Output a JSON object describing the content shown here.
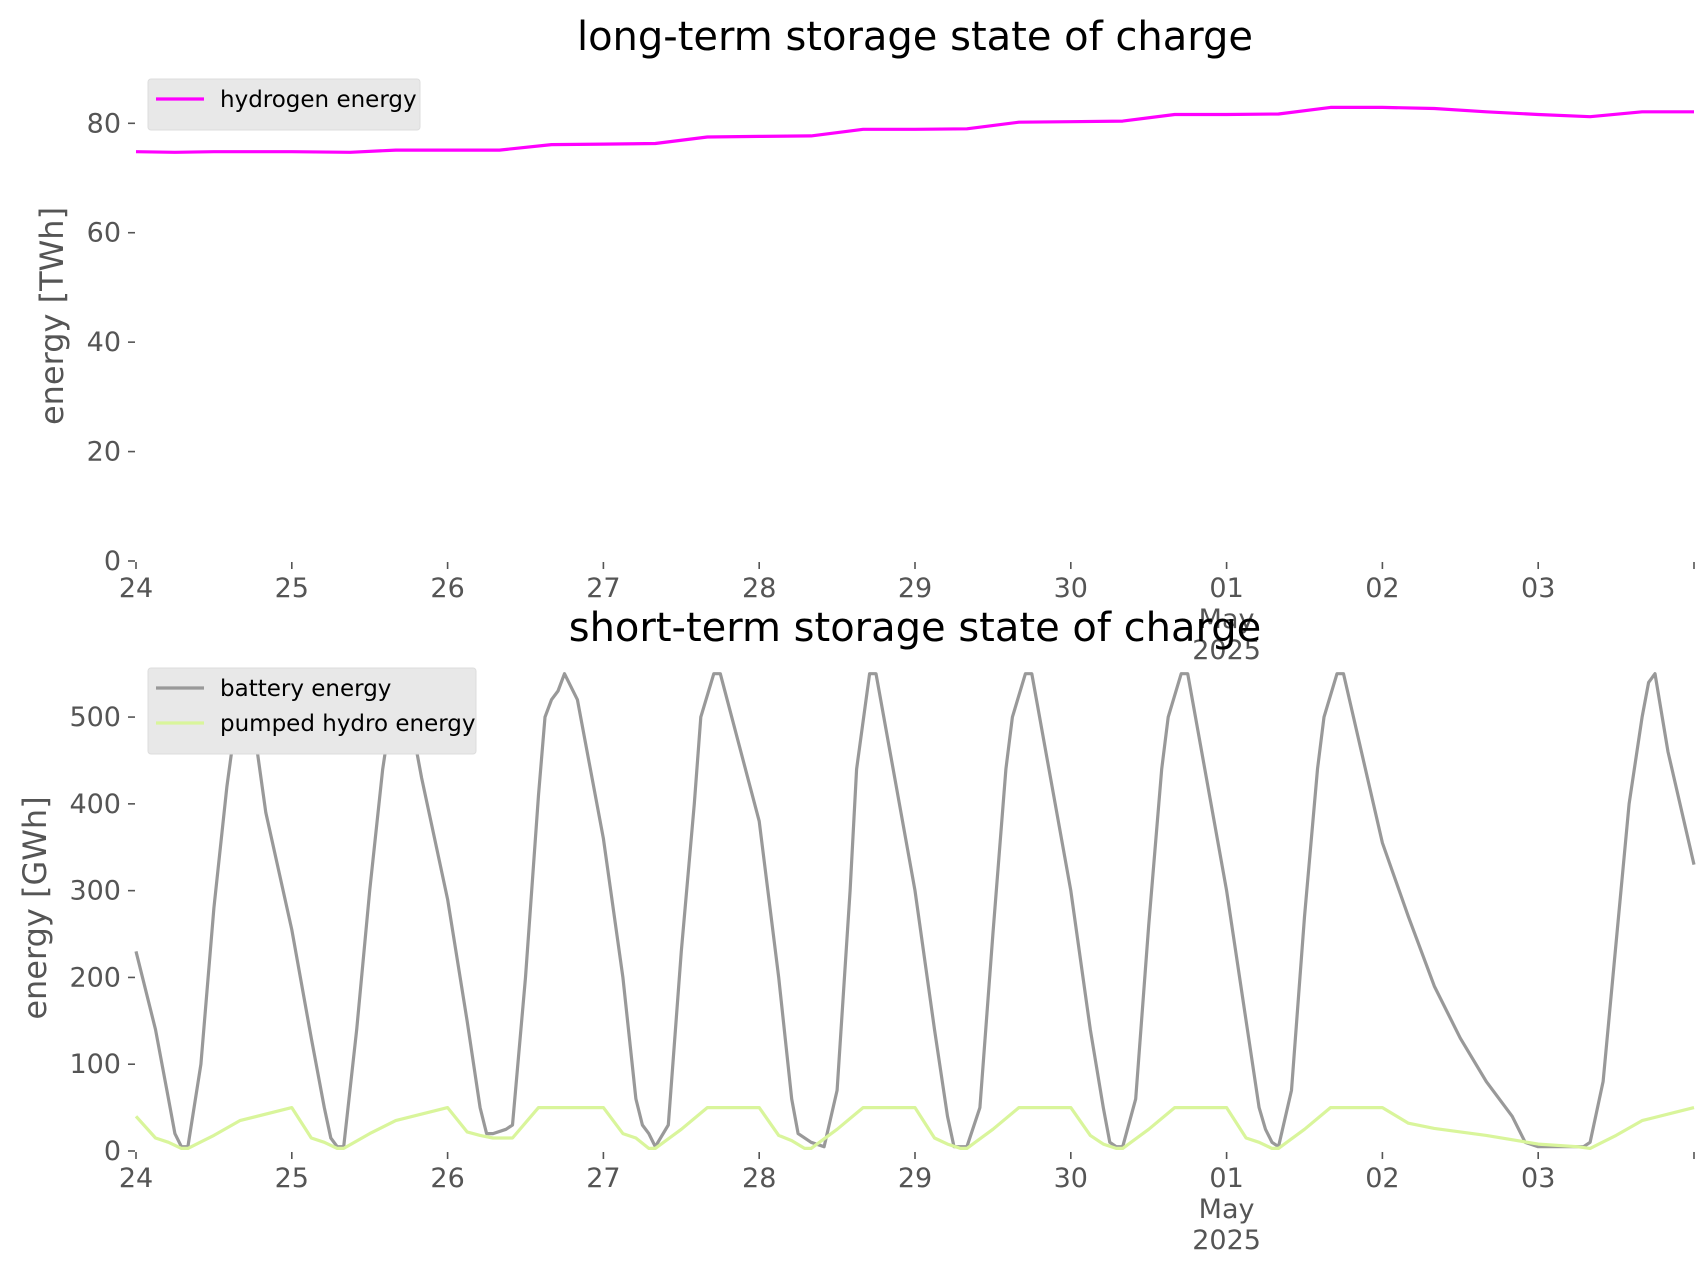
{
  "chart_data": [
    {
      "type": "line",
      "title": "long-term storage state of charge",
      "xlabel": "",
      "ylabel": "energy [TWh]",
      "xlim": [
        "2025-04-24 00:00",
        "2025-05-04 00:00"
      ],
      "ylim": [
        0,
        87
      ],
      "yticks": [
        0,
        20,
        40,
        60,
        80
      ],
      "xtick_labels": [
        "24",
        "25",
        "26",
        "27",
        "28",
        "29",
        "30",
        "01\nMay\n2025",
        "02",
        "03"
      ],
      "grid": false,
      "legend_position": "upper-left",
      "series": [
        {
          "name": "hydrogen energy",
          "color": "#ff00ff",
          "x": [
            "2025-04-24 00:00",
            "2025-04-24 06:00",
            "2025-04-24 12:00",
            "2025-04-24 18:00",
            "2025-04-25 00:00",
            "2025-04-25 09:00",
            "2025-04-25 16:00",
            "2025-04-26 00:00",
            "2025-04-26 08:00",
            "2025-04-26 16:00",
            "2025-04-27 00:00",
            "2025-04-27 08:00",
            "2025-04-27 16:00",
            "2025-04-28 00:00",
            "2025-04-28 08:00",
            "2025-04-28 16:00",
            "2025-04-29 00:00",
            "2025-04-29 08:00",
            "2025-04-29 16:00",
            "2025-04-30 00:00",
            "2025-04-30 08:00",
            "2025-04-30 16:00",
            "2025-05-01 00:00",
            "2025-05-01 08:00",
            "2025-05-01 16:00",
            "2025-05-02 00:00",
            "2025-05-02 08:00",
            "2025-05-02 16:00",
            "2025-05-03 00:00",
            "2025-05-03 08:00",
            "2025-05-03 16:00",
            "2025-05-04 00:00"
          ],
          "y": [
            74.8,
            74.7,
            74.8,
            74.8,
            74.8,
            74.7,
            75.1,
            75.1,
            75.1,
            76.1,
            76.2,
            76.3,
            77.5,
            77.6,
            77.7,
            78.9,
            78.9,
            79.0,
            80.2,
            80.3,
            80.4,
            81.6,
            81.6,
            81.7,
            82.9,
            82.9,
            82.7,
            82.1,
            81.6,
            81.2,
            82.1,
            82.1
          ]
        }
      ]
    },
    {
      "type": "line",
      "title": "short-term storage state of charge",
      "xlabel": "",
      "ylabel": "energy [GWh]",
      "xlim": [
        "2025-04-24 00:00",
        "2025-05-04 00:00"
      ],
      "ylim": [
        0,
        560
      ],
      "yticks": [
        0,
        100,
        200,
        300,
        400,
        500
      ],
      "xtick_labels": [
        "24",
        "25",
        "26",
        "27",
        "28",
        "29",
        "30",
        "01\nMay\n2025",
        "02",
        "03"
      ],
      "grid": false,
      "legend_position": "upper-left",
      "series": [
        {
          "name": "battery energy",
          "color": "#999999",
          "x": [
            "2025-04-24 00:00",
            "2025-04-24 03:00",
            "2025-04-24 05:00",
            "2025-04-24 06:00",
            "2025-04-24 07:00",
            "2025-04-24 08:00",
            "2025-04-24 10:00",
            "2025-04-24 12:00",
            "2025-04-24 14:00",
            "2025-04-24 16:00",
            "2025-04-24 17:00",
            "2025-04-24 20:00",
            "2025-04-25 00:00",
            "2025-04-25 03:00",
            "2025-04-25 05:00",
            "2025-04-25 06:00",
            "2025-04-25 07:00",
            "2025-04-25 08:00",
            "2025-04-25 10:00",
            "2025-04-25 12:00",
            "2025-04-25 14:00",
            "2025-04-25 16:00",
            "2025-04-25 17:00",
            "2025-04-25 20:00",
            "2025-04-26 00:00",
            "2025-04-26 03:00",
            "2025-04-26 05:00",
            "2025-04-26 06:00",
            "2025-04-26 07:00",
            "2025-04-26 09:00",
            "2025-04-26 10:00",
            "2025-04-26 12:00",
            "2025-04-26 14:00",
            "2025-04-26 15:00",
            "2025-04-26 16:00",
            "2025-04-26 17:00",
            "2025-04-26 18:00",
            "2025-04-26 20:00",
            "2025-04-27 00:00",
            "2025-04-27 03:00",
            "2025-04-27 05:00",
            "2025-04-27 06:00",
            "2025-04-27 07:00",
            "2025-04-27 08:00",
            "2025-04-27 10:00",
            "2025-04-27 12:00",
            "2025-04-27 14:00",
            "2025-04-27 15:00",
            "2025-04-27 17:00",
            "2025-04-27 18:00",
            "2025-04-28 00:00",
            "2025-04-28 03:00",
            "2025-04-28 05:00",
            "2025-04-28 06:00",
            "2025-04-28 08:00",
            "2025-04-28 10:00",
            "2025-04-28 12:00",
            "2025-04-28 14:00",
            "2025-04-28 15:00",
            "2025-04-28 17:00",
            "2025-04-28 18:00",
            "2025-04-29 00:00",
            "2025-04-29 03:00",
            "2025-04-29 05:00",
            "2025-04-29 06:00",
            "2025-04-29 07:00",
            "2025-04-29 08:00",
            "2025-04-29 10:00",
            "2025-04-29 12:00",
            "2025-04-29 14:00",
            "2025-04-29 15:00",
            "2025-04-29 17:00",
            "2025-04-29 18:00",
            "2025-04-30 00:00",
            "2025-04-30 03:00",
            "2025-04-30 05:00",
            "2025-04-30 06:00",
            "2025-04-30 07:00",
            "2025-04-30 08:00",
            "2025-04-30 10:00",
            "2025-04-30 12:00",
            "2025-04-30 14:00",
            "2025-04-30 15:00",
            "2025-04-30 17:00",
            "2025-04-30 18:00",
            "2025-05-01 00:00",
            "2025-05-01 03:00",
            "2025-05-01 05:00",
            "2025-05-01 06:00",
            "2025-05-01 07:00",
            "2025-05-01 08:00",
            "2025-05-01 10:00",
            "2025-05-01 12:00",
            "2025-05-01 14:00",
            "2025-05-01 15:00",
            "2025-05-01 17:00",
            "2025-05-01 18:00",
            "2025-05-02 00:00",
            "2025-05-02 04:00",
            "2025-05-02 08:00",
            "2025-05-02 12:00",
            "2025-05-02 16:00",
            "2025-05-02 20:00",
            "2025-05-02 22:00",
            "2025-05-03 00:00",
            "2025-05-03 04:00",
            "2025-05-03 06:00",
            "2025-05-03 07:00",
            "2025-05-03 08:00",
            "2025-05-03 10:00",
            "2025-05-03 12:00",
            "2025-05-03 14:00",
            "2025-05-03 16:00",
            "2025-05-03 17:00",
            "2025-05-03 18:00",
            "2025-05-03 20:00",
            "2025-05-04 00:00"
          ],
          "y": [
            230,
            140,
            60,
            20,
            5,
            5,
            100,
            280,
            420,
            530,
            550,
            390,
            255,
            130,
            50,
            15,
            5,
            5,
            140,
            300,
            440,
            540,
            550,
            430,
            290,
            150,
            50,
            20,
            20,
            25,
            30,
            200,
            410,
            500,
            520,
            530,
            550,
            520,
            360,
            200,
            60,
            30,
            20,
            5,
            30,
            230,
            400,
            500,
            550,
            550,
            380,
            200,
            60,
            20,
            10,
            5,
            70,
            300,
            440,
            550,
            550,
            300,
            140,
            40,
            5,
            5,
            5,
            50,
            250,
            440,
            500,
            550,
            550,
            300,
            140,
            50,
            10,
            5,
            5,
            60,
            260,
            440,
            500,
            550,
            550,
            300,
            150,
            50,
            25,
            10,
            5,
            70,
            270,
            440,
            500,
            550,
            550,
            355,
            270,
            190,
            130,
            80,
            40,
            10,
            5,
            5,
            5,
            5,
            10,
            80,
            240,
            400,
            500,
            540,
            550,
            460,
            330
          ]
        },
        {
          "name": "pumped hydro energy",
          "color": "#d9f59b",
          "x": [
            "2025-04-24 00:00",
            "2025-04-24 03:00",
            "2025-04-24 05:00",
            "2025-04-24 07:00",
            "2025-04-24 08:00",
            "2025-04-24 12:00",
            "2025-04-24 16:00",
            "2025-04-25 00:00",
            "2025-04-25 03:00",
            "2025-04-25 05:00",
            "2025-04-25 07:00",
            "2025-04-25 08:00",
            "2025-04-25 12:00",
            "2025-04-25 16:00",
            "2025-04-26 00:00",
            "2025-04-26 03:00",
            "2025-04-26 05:00",
            "2025-04-26 07:00",
            "2025-04-26 10:00",
            "2025-04-26 14:00",
            "2025-04-26 16:00",
            "2025-04-27 00:00",
            "2025-04-27 03:00",
            "2025-04-27 05:00",
            "2025-04-27 07:00",
            "2025-04-27 08:00",
            "2025-04-27 12:00",
            "2025-04-27 16:00",
            "2025-04-28 00:00",
            "2025-04-28 03:00",
            "2025-04-28 05:00",
            "2025-04-28 07:00",
            "2025-04-28 08:00",
            "2025-04-28 12:00",
            "2025-04-28 16:00",
            "2025-04-29 00:00",
            "2025-04-29 03:00",
            "2025-04-29 05:00",
            "2025-04-29 07:00",
            "2025-04-29 08:00",
            "2025-04-29 12:00",
            "2025-04-29 16:00",
            "2025-04-30 00:00",
            "2025-04-30 03:00",
            "2025-04-30 05:00",
            "2025-04-30 07:00",
            "2025-04-30 08:00",
            "2025-04-30 12:00",
            "2025-04-30 16:00",
            "2025-05-01 00:00",
            "2025-05-01 03:00",
            "2025-05-01 05:00",
            "2025-05-01 07:00",
            "2025-05-01 08:00",
            "2025-05-01 12:00",
            "2025-05-01 16:00",
            "2025-05-02 00:00",
            "2025-05-02 04:00",
            "2025-05-02 08:00",
            "2025-05-02 16:00",
            "2025-05-03 00:00",
            "2025-05-03 06:00",
            "2025-05-03 08:00",
            "2025-05-03 12:00",
            "2025-05-03 16:00",
            "2025-05-04 00:00"
          ],
          "y": [
            40,
            15,
            10,
            3,
            3,
            18,
            35,
            50,
            15,
            10,
            3,
            3,
            20,
            35,
            50,
            22,
            18,
            15,
            15,
            50,
            50,
            50,
            20,
            15,
            3,
            3,
            25,
            50,
            50,
            18,
            12,
            3,
            3,
            25,
            50,
            50,
            15,
            8,
            3,
            3,
            25,
            50,
            50,
            18,
            8,
            3,
            3,
            25,
            50,
            50,
            15,
            10,
            3,
            3,
            25,
            50,
            50,
            32,
            26,
            18,
            8,
            5,
            3,
            18,
            35,
            50
          ]
        }
      ]
    }
  ]
}
